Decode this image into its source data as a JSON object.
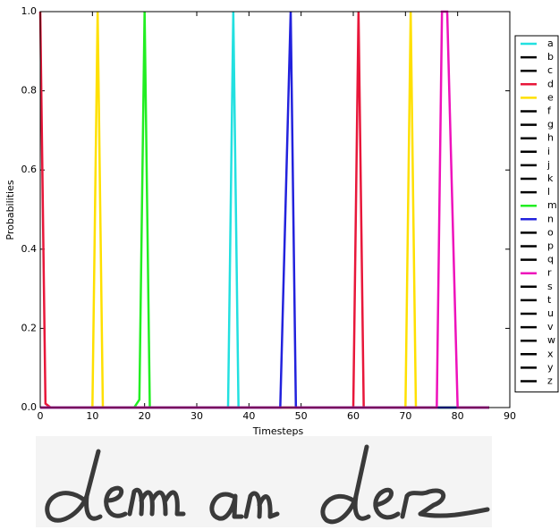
{
  "chart_data": {
    "type": "line",
    "xlabel": "Timesteps",
    "ylabel": "Probabilities",
    "xlim": [
      0,
      90
    ],
    "xticks": [
      0,
      10,
      20,
      30,
      40,
      50,
      60,
      70,
      80,
      90
    ],
    "ylim": [
      0,
      1
    ],
    "yticks": [
      {
        "value": 0,
        "label": "0.0"
      },
      0.2,
      0.4,
      0.6,
      0.8,
      {
        "value": 1,
        "label": "1.0"
      }
    ],
    "series": [
      {
        "name": "a",
        "color": "#22e0e0",
        "x": [
          0,
          36,
          37,
          38,
          86
        ],
        "values": [
          0,
          0,
          1,
          0,
          0
        ]
      },
      {
        "name": "b",
        "color": "#000000",
        "x": [
          0,
          86
        ],
        "values": [
          0,
          0
        ]
      },
      {
        "name": "c",
        "color": "#000000",
        "x": [
          0,
          86
        ],
        "values": [
          0,
          0
        ]
      },
      {
        "name": "d",
        "color": "#e8173a",
        "x": [
          0,
          1,
          2,
          60,
          61,
          62,
          86
        ],
        "values": [
          1,
          0.01,
          0,
          0,
          1,
          0,
          0
        ]
      },
      {
        "name": "e",
        "color": "#ffe000",
        "x": [
          0,
          10,
          11,
          12,
          70,
          71,
          72,
          86
        ],
        "values": [
          0,
          0,
          1,
          0,
          0,
          1,
          0,
          0
        ]
      },
      {
        "name": "f",
        "color": "#000000",
        "x": [
          0,
          86
        ],
        "values": [
          0,
          0
        ]
      },
      {
        "name": "g",
        "color": "#000000",
        "x": [
          0,
          86
        ],
        "values": [
          0,
          0
        ]
      },
      {
        "name": "h",
        "color": "#000000",
        "x": [
          0,
          86
        ],
        "values": [
          0,
          0
        ]
      },
      {
        "name": "i",
        "color": "#000000",
        "x": [
          0,
          86
        ],
        "values": [
          0,
          0
        ]
      },
      {
        "name": "j",
        "color": "#000000",
        "x": [
          0,
          86
        ],
        "values": [
          0,
          0
        ]
      },
      {
        "name": "k",
        "color": "#000000",
        "x": [
          0,
          86
        ],
        "values": [
          0,
          0
        ]
      },
      {
        "name": "l",
        "color": "#000000",
        "x": [
          0,
          86
        ],
        "values": [
          0,
          0
        ]
      },
      {
        "name": "m",
        "color": "#22ee22",
        "x": [
          0,
          18,
          19,
          20,
          21,
          86
        ],
        "values": [
          0,
          0,
          0.02,
          1,
          0,
          0
        ]
      },
      {
        "name": "n",
        "color": "#2222dd",
        "x": [
          0,
          46,
          47,
          48,
          49,
          86
        ],
        "values": [
          0,
          0,
          0.5,
          1,
          0,
          0
        ]
      },
      {
        "name": "o",
        "color": "#000000",
        "x": [
          0,
          86
        ],
        "values": [
          0,
          0
        ]
      },
      {
        "name": "p",
        "color": "#000000",
        "x": [
          0,
          86
        ],
        "values": [
          0,
          0
        ]
      },
      {
        "name": "q",
        "color": "#000000",
        "x": [
          0,
          86
        ],
        "values": [
          0,
          0
        ]
      },
      {
        "name": "r",
        "color": "#ee11bb",
        "x": [
          0,
          76,
          77,
          78,
          79,
          80,
          86
        ],
        "values": [
          0,
          0,
          1,
          1,
          0.5,
          0,
          0
        ]
      },
      {
        "name": "s",
        "color": "#000000",
        "x": [
          0,
          86
        ],
        "values": [
          0,
          0
        ]
      },
      {
        "name": "t",
        "color": "#000000",
        "x": [
          0,
          86
        ],
        "values": [
          0,
          0
        ]
      },
      {
        "name": "u",
        "color": "#000000",
        "x": [
          0,
          86
        ],
        "values": [
          0,
          0
        ]
      },
      {
        "name": "v",
        "color": "#000000",
        "x": [
          0,
          86
        ],
        "values": [
          0,
          0
        ]
      },
      {
        "name": "w",
        "color": "#000000",
        "x": [
          0,
          86
        ],
        "values": [
          0,
          0
        ]
      },
      {
        "name": "x",
        "color": "#000000",
        "x": [
          0,
          86
        ],
        "values": [
          0,
          0
        ]
      },
      {
        "name": "y",
        "color": "#000000",
        "x": [
          0,
          86
        ],
        "values": [
          0,
          0
        ]
      },
      {
        "name": "z",
        "color": "#000000",
        "x": [
          0,
          86
        ],
        "values": [
          0,
          0
        ]
      }
    ]
  }
}
